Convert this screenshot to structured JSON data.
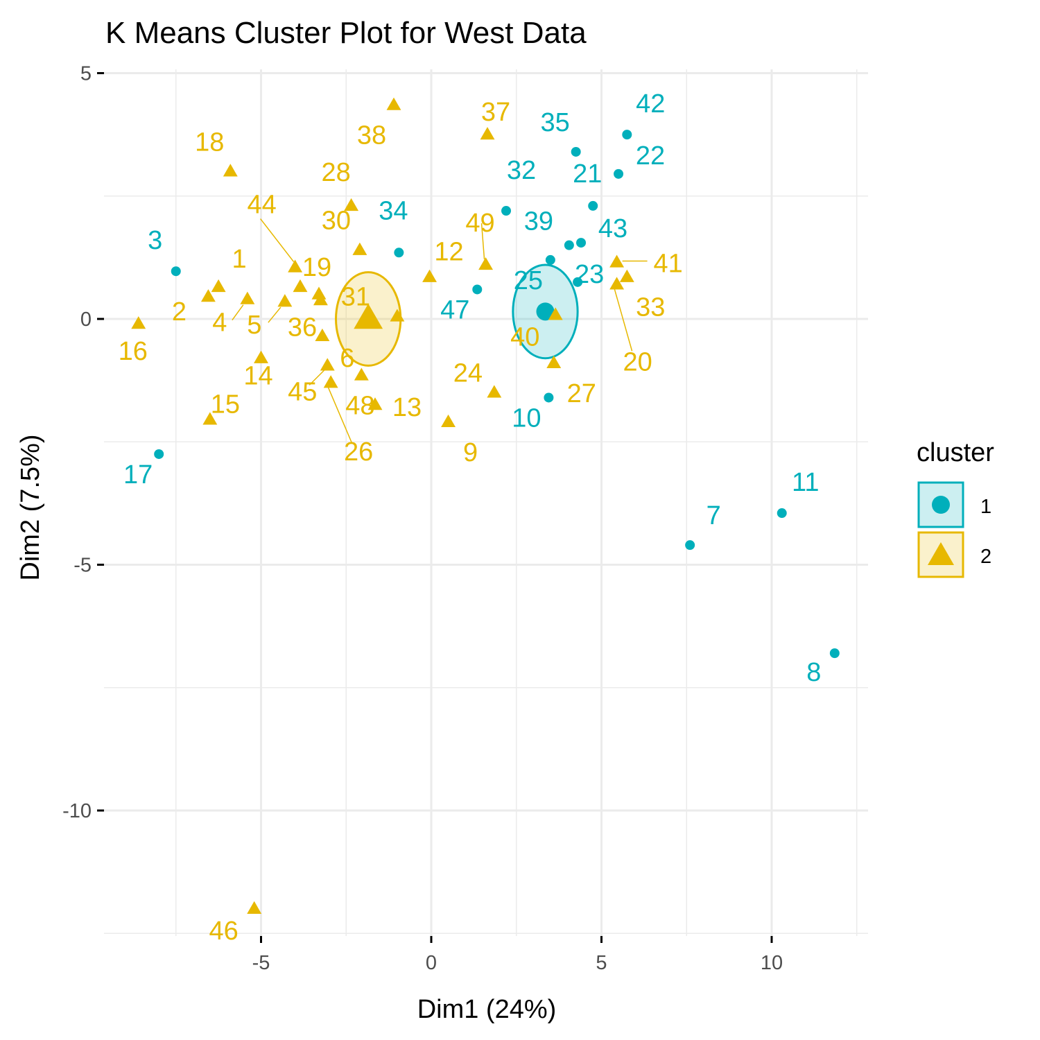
{
  "chart_data": {
    "type": "scatter",
    "title": "K Means Cluster Plot for West Data",
    "xlabel": "Dim1 (24%)",
    "ylabel": "Dim2 (7.5%)",
    "xlim": [
      -9.4,
      13.0
    ],
    "ylim": [
      -12.7,
      5.2
    ],
    "x_ticks": [
      -5,
      0,
      5,
      10
    ],
    "y_ticks": [
      5,
      0,
      -5,
      -10
    ],
    "x_tick_labels": [
      "-5",
      "0",
      "5",
      "10"
    ],
    "y_tick_labels": [
      "5",
      "0",
      "-5",
      "-10"
    ],
    "grid": true,
    "legend": {
      "title": "cluster",
      "position": "right",
      "entries": [
        {
          "label": "1",
          "color": "#00AFBB",
          "shape": "circle"
        },
        {
          "label": "2",
          "color": "#E7B800",
          "shape": "triangle"
        }
      ]
    },
    "series": [
      {
        "name": "1",
        "color": "#00AFBB",
        "shape": "circle",
        "centroid": [
          3.35,
          0.15
        ],
        "ellipse": {
          "rx": 0.95,
          "ry": 0.95
        },
        "points": [
          {
            "label": "3",
            "x": -7.5,
            "y": 0.97
          },
          {
            "label": "17",
            "x": -8.0,
            "y": -2.75
          },
          {
            "label": "34",
            "x": -0.95,
            "y": 1.35
          },
          {
            "label": "47",
            "x": 1.35,
            "y": 0.6
          },
          {
            "label": "32",
            "x": 2.2,
            "y": 2.2
          },
          {
            "label": "35",
            "x": 4.25,
            "y": 3.4
          },
          {
            "label": "42",
            "x": 5.75,
            "y": 3.75
          },
          {
            "label": "22",
            "x": 5.5,
            "y": 2.95
          },
          {
            "label": "21",
            "x": 4.75,
            "y": 2.3
          },
          {
            "label": "39",
            "x": 4.05,
            "y": 1.5
          },
          {
            "label": "43",
            "x": 4.4,
            "y": 1.55
          },
          {
            "label": "25",
            "x": 3.5,
            "y": 1.2
          },
          {
            "label": "23",
            "x": 4.3,
            "y": 0.75
          },
          {
            "label": "10",
            "x": 3.45,
            "y": -1.6
          },
          {
            "label": "7",
            "x": 7.6,
            "y": -4.6
          },
          {
            "label": "11",
            "x": 10.3,
            "y": -3.95
          },
          {
            "label": "8",
            "x": 11.85,
            "y": -6.8
          }
        ]
      },
      {
        "name": "2",
        "color": "#E7B800",
        "shape": "triangle",
        "centroid": [
          -1.85,
          0.0
        ],
        "ellipse": {
          "rx": 0.95,
          "ry": 0.95
        },
        "points": [
          {
            "label": "16",
            "x": -8.6,
            "y": -0.1
          },
          {
            "label": "18",
            "x": -5.9,
            "y": 3.0
          },
          {
            "label": "2",
            "x": -6.55,
            "y": 0.45
          },
          {
            "label": "1",
            "x": -6.25,
            "y": 0.65
          },
          {
            "label": "4",
            "x": -5.4,
            "y": 0.4
          },
          {
            "label": "5",
            "x": -4.3,
            "y": 0.35
          },
          {
            "label": "44",
            "x": -4.0,
            "y": 1.05
          },
          {
            "label": "19",
            "x": -3.85,
            "y": 0.65
          },
          {
            "label": "36",
            "x": -3.3,
            "y": 0.5
          },
          {
            "label": "36b",
            "x": -3.25,
            "y": 0.38,
            "hidden_label": true
          },
          {
            "label": "14",
            "x": -5.0,
            "y": -0.8
          },
          {
            "label": "15",
            "x": -6.5,
            "y": -2.05
          },
          {
            "label": "28",
            "x": -2.35,
            "y": 2.3
          },
          {
            "label": "30",
            "x": -2.1,
            "y": 1.4
          },
          {
            "label": "31",
            "x": -1.0,
            "y": 0.05
          },
          {
            "label": "6",
            "x": -3.2,
            "y": -0.35
          },
          {
            "label": "45",
            "x": -3.05,
            "y": -0.95
          },
          {
            "label": "26",
            "x": -2.95,
            "y": -1.3
          },
          {
            "label": "48",
            "x": -2.05,
            "y": -1.15
          },
          {
            "label": "13",
            "x": -1.65,
            "y": -1.75
          },
          {
            "label": "38",
            "x": -1.1,
            "y": 4.35
          },
          {
            "label": "12",
            "x": -0.05,
            "y": 0.85
          },
          {
            "label": "9",
            "x": 0.5,
            "y": -2.1
          },
          {
            "label": "24",
            "x": 1.85,
            "y": -1.5
          },
          {
            "label": "37",
            "x": 1.65,
            "y": 3.75
          },
          {
            "label": "49",
            "x": 1.6,
            "y": 1.1
          },
          {
            "label": "40",
            "x": 3.65,
            "y": 0.08
          },
          {
            "label": "27",
            "x": 3.6,
            "y": -0.9
          },
          {
            "label": "41",
            "x": 5.45,
            "y": 1.15
          },
          {
            "label": "33",
            "x": 5.75,
            "y": 0.85
          },
          {
            "label": "20",
            "x": 5.45,
            "y": 0.7
          },
          {
            "label": "46",
            "x": -5.2,
            "y": -12.0
          }
        ]
      }
    ]
  }
}
